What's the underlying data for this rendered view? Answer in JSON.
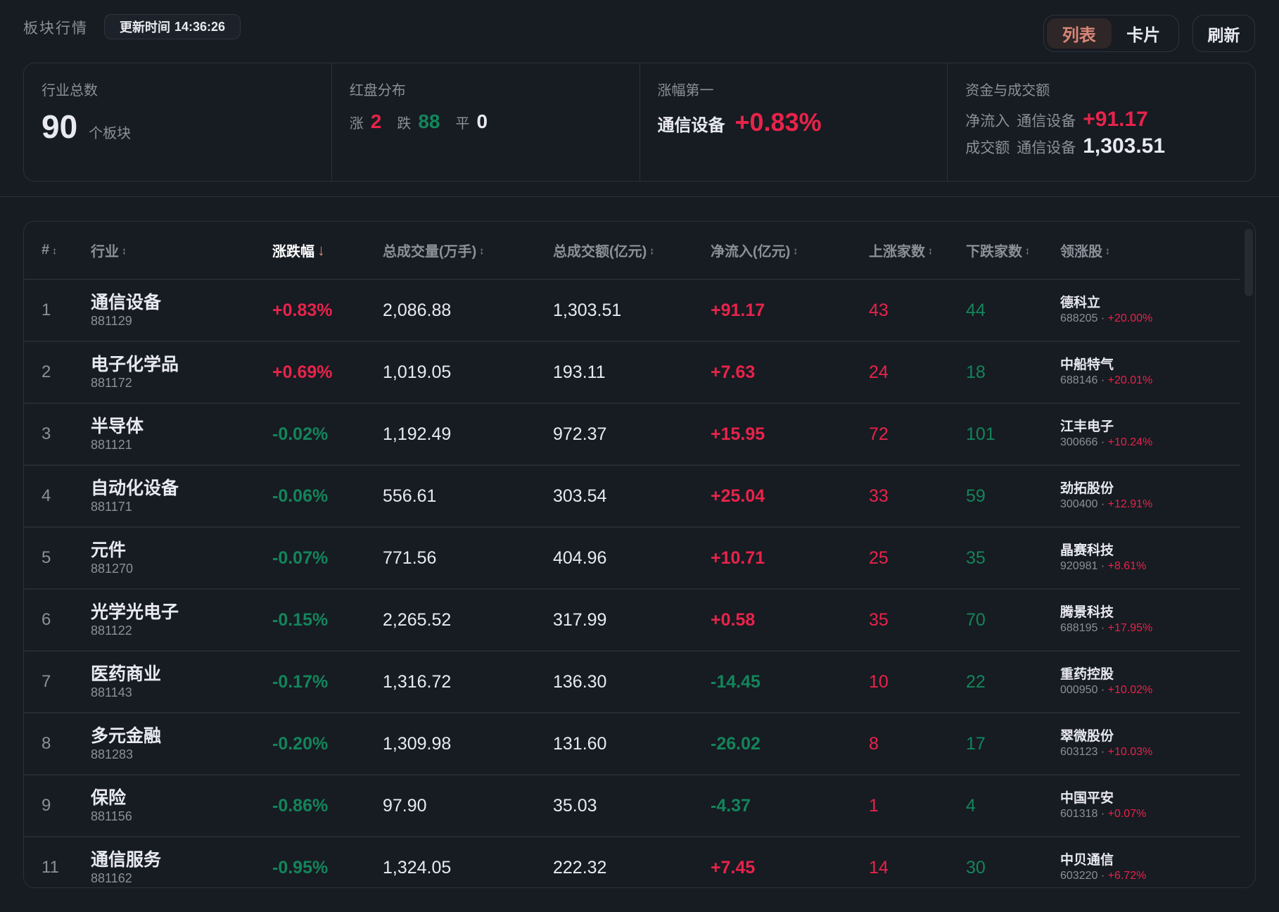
{
  "header": {
    "title": "板块行情",
    "update_label": "更新时间",
    "update_time": "14:36:26",
    "view_list": "列表",
    "view_card": "卡片",
    "refresh": "刷新"
  },
  "summary": {
    "total": {
      "label": "行业总数",
      "value": "90",
      "unit": "个板块"
    },
    "distribution": {
      "label": "红盘分布",
      "up_label": "涨",
      "up": "2",
      "down_label": "跌",
      "down": "88",
      "flat_label": "平",
      "flat": "0"
    },
    "top_gainer": {
      "label": "涨幅第一",
      "name": "通信设备",
      "change": "+0.83%"
    },
    "funds": {
      "label": "资金与成交额",
      "inflow_label": "净流入",
      "inflow_name": "通信设备",
      "inflow_value": "+91.17",
      "amount_label": "成交额",
      "amount_name": "通信设备",
      "amount_value": "1,303.51"
    }
  },
  "table": {
    "columns": [
      "#",
      "行业",
      "涨跌幅",
      "总成交量(万手)",
      "总成交额(亿元)",
      "净流入(亿元)",
      "上涨家数",
      "下跌家数",
      "领涨股"
    ],
    "sort_up_down": "↕",
    "sort_desc": "↓",
    "rows": [
      {
        "rank": "1",
        "name": "通信设备",
        "code": "881129",
        "change": "+0.83%",
        "volume": "2,086.88",
        "amount": "1,303.51",
        "inflow": "+91.17",
        "up": "43",
        "down": "44",
        "leader": "德科立",
        "leader_code": "688205",
        "leader_change": "+20.00%"
      },
      {
        "rank": "2",
        "name": "电子化学品",
        "code": "881172",
        "change": "+0.69%",
        "volume": "1,019.05",
        "amount": "193.11",
        "inflow": "+7.63",
        "up": "24",
        "down": "18",
        "leader": "中船特气",
        "leader_code": "688146",
        "leader_change": "+20.01%"
      },
      {
        "rank": "3",
        "name": "半导体",
        "code": "881121",
        "change": "-0.02%",
        "volume": "1,192.49",
        "amount": "972.37",
        "inflow": "+15.95",
        "up": "72",
        "down": "101",
        "leader": "江丰电子",
        "leader_code": "300666",
        "leader_change": "+10.24%"
      },
      {
        "rank": "4",
        "name": "自动化设备",
        "code": "881171",
        "change": "-0.06%",
        "volume": "556.61",
        "amount": "303.54",
        "inflow": "+25.04",
        "up": "33",
        "down": "59",
        "leader": "劲拓股份",
        "leader_code": "300400",
        "leader_change": "+12.91%"
      },
      {
        "rank": "5",
        "name": "元件",
        "code": "881270",
        "change": "-0.07%",
        "volume": "771.56",
        "amount": "404.96",
        "inflow": "+10.71",
        "up": "25",
        "down": "35",
        "leader": "晶赛科技",
        "leader_code": "920981",
        "leader_change": "+8.61%"
      },
      {
        "rank": "6",
        "name": "光学光电子",
        "code": "881122",
        "change": "-0.15%",
        "volume": "2,265.52",
        "amount": "317.99",
        "inflow": "+0.58",
        "up": "35",
        "down": "70",
        "leader": "腾景科技",
        "leader_code": "688195",
        "leader_change": "+17.95%"
      },
      {
        "rank": "7",
        "name": "医药商业",
        "code": "881143",
        "change": "-0.17%",
        "volume": "1,316.72",
        "amount": "136.30",
        "inflow": "-14.45",
        "up": "10",
        "down": "22",
        "leader": "重药控股",
        "leader_code": "000950",
        "leader_change": "+10.02%"
      },
      {
        "rank": "8",
        "name": "多元金融",
        "code": "881283",
        "change": "-0.20%",
        "volume": "1,309.98",
        "amount": "131.60",
        "inflow": "-26.02",
        "up": "8",
        "down": "17",
        "leader": "翠微股份",
        "leader_code": "603123",
        "leader_change": "+10.03%"
      },
      {
        "rank": "9",
        "name": "保险",
        "code": "881156",
        "change": "-0.86%",
        "volume": "97.90",
        "amount": "35.03",
        "inflow": "-4.37",
        "up": "1",
        "down": "4",
        "leader": "中国平安",
        "leader_code": "601318",
        "leader_change": "+0.07%"
      },
      {
        "rank": "11",
        "name": "通信服务",
        "code": "881162",
        "change": "-0.95%",
        "volume": "1,324.05",
        "amount": "222.32",
        "inflow": "+7.45",
        "up": "14",
        "down": "30",
        "leader": "中贝通信",
        "leader_code": "603220",
        "leader_change": "+6.72%"
      }
    ]
  },
  "colors": {
    "up": "#e8234a",
    "down": "#12855a",
    "background": "#171b22",
    "accent": "#d98677"
  }
}
